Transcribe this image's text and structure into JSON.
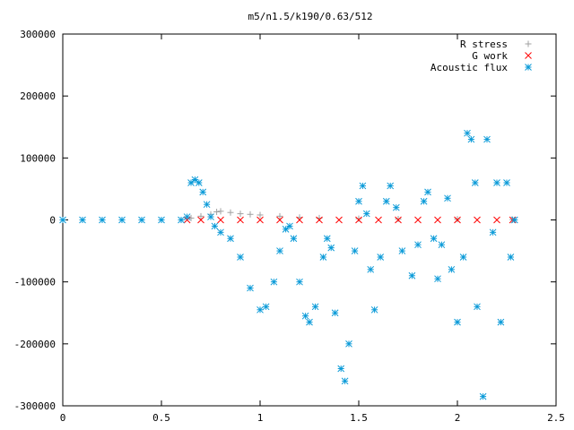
{
  "chart_data": {
    "type": "scatter",
    "title": "m5/n1.5/k190/0.63/512",
    "xlabel": "",
    "ylabel": "",
    "xlim": [
      0,
      2.5
    ],
    "ylim": [
      -300000,
      300000
    ],
    "x_ticks": [
      {
        "value": 0,
        "label": "0"
      },
      {
        "value": 0.5,
        "label": "0.5"
      },
      {
        "value": 1,
        "label": "1"
      },
      {
        "value": 1.5,
        "label": "1.5"
      },
      {
        "value": 2,
        "label": "2"
      },
      {
        "value": 2.5,
        "label": "2.5"
      }
    ],
    "y_ticks": [
      {
        "value": -300000,
        "label": "-300000"
      },
      {
        "value": -200000,
        "label": "-200000"
      },
      {
        "value": -100000,
        "label": "-100000"
      },
      {
        "value": 0,
        "label": "0"
      },
      {
        "value": 100000,
        "label": "100000"
      },
      {
        "value": 200000,
        "label": "200000"
      },
      {
        "value": 300000,
        "label": "300000"
      }
    ],
    "grid": false,
    "legend_position": "top-right",
    "series": [
      {
        "name": "R stress",
        "marker": "plus",
        "color": "#a0a0a0",
        "points": [
          [
            0.65,
            3000
          ],
          [
            0.7,
            6000
          ],
          [
            0.75,
            9000
          ],
          [
            0.78,
            13000
          ],
          [
            0.8,
            14000
          ],
          [
            0.85,
            12000
          ],
          [
            0.9,
            10000
          ],
          [
            0.95,
            9000
          ],
          [
            1.0,
            8000
          ],
          [
            1.1,
            6000
          ],
          [
            1.2,
            4000
          ],
          [
            1.3,
            3000
          ],
          [
            1.5,
            2000
          ],
          [
            1.7,
            1500
          ],
          [
            2.0,
            1000
          ],
          [
            2.28,
            500
          ]
        ]
      },
      {
        "name": "G work",
        "marker": "cross",
        "color": "#ff0000",
        "points": [
          [
            0.63,
            0
          ],
          [
            0.7,
            0
          ],
          [
            0.8,
            0
          ],
          [
            0.9,
            0
          ],
          [
            1.0,
            0
          ],
          [
            1.1,
            0
          ],
          [
            1.2,
            0
          ],
          [
            1.3,
            0
          ],
          [
            1.4,
            0
          ],
          [
            1.5,
            0
          ],
          [
            1.6,
            0
          ],
          [
            1.7,
            0
          ],
          [
            1.8,
            0
          ],
          [
            1.9,
            0
          ],
          [
            2.0,
            0
          ],
          [
            2.1,
            0
          ],
          [
            2.2,
            0
          ],
          [
            2.28,
            0
          ]
        ]
      },
      {
        "name": "Acoustic flux",
        "marker": "star",
        "color": "#0a9ad8",
        "points": [
          [
            0.0,
            0
          ],
          [
            0.1,
            0
          ],
          [
            0.2,
            0
          ],
          [
            0.3,
            0
          ],
          [
            0.4,
            0
          ],
          [
            0.5,
            0
          ],
          [
            0.6,
            0
          ],
          [
            0.63,
            5000
          ],
          [
            0.65,
            60000
          ],
          [
            0.67,
            65000
          ],
          [
            0.69,
            60000
          ],
          [
            0.71,
            45000
          ],
          [
            0.73,
            25000
          ],
          [
            0.75,
            5000
          ],
          [
            0.77,
            -10000
          ],
          [
            0.8,
            -20000
          ],
          [
            0.85,
            -30000
          ],
          [
            0.9,
            -60000
          ],
          [
            0.95,
            -110000
          ],
          [
            1.0,
            -145000
          ],
          [
            1.03,
            -140000
          ],
          [
            1.07,
            -100000
          ],
          [
            1.1,
            -50000
          ],
          [
            1.13,
            -15000
          ],
          [
            1.15,
            -10000
          ],
          [
            1.17,
            -30000
          ],
          [
            1.2,
            -100000
          ],
          [
            1.23,
            -155000
          ],
          [
            1.25,
            -165000
          ],
          [
            1.28,
            -140000
          ],
          [
            1.32,
            -60000
          ],
          [
            1.34,
            -30000
          ],
          [
            1.36,
            -45000
          ],
          [
            1.38,
            -150000
          ],
          [
            1.41,
            -240000
          ],
          [
            1.43,
            -260000
          ],
          [
            1.45,
            -200000
          ],
          [
            1.48,
            -50000
          ],
          [
            1.5,
            30000
          ],
          [
            1.52,
            55000
          ],
          [
            1.54,
            10000
          ],
          [
            1.56,
            -80000
          ],
          [
            1.58,
            -145000
          ],
          [
            1.61,
            -60000
          ],
          [
            1.64,
            30000
          ],
          [
            1.66,
            55000
          ],
          [
            1.69,
            20000
          ],
          [
            1.72,
            -50000
          ],
          [
            1.77,
            -90000
          ],
          [
            1.8,
            -40000
          ],
          [
            1.83,
            30000
          ],
          [
            1.85,
            45000
          ],
          [
            1.88,
            -30000
          ],
          [
            1.9,
            -95000
          ],
          [
            1.92,
            -40000
          ],
          [
            1.95,
            35000
          ],
          [
            1.97,
            -80000
          ],
          [
            2.0,
            -165000
          ],
          [
            2.03,
            -60000
          ],
          [
            2.05,
            140000
          ],
          [
            2.07,
            130000
          ],
          [
            2.09,
            60000
          ],
          [
            2.1,
            -140000
          ],
          [
            2.13,
            -285000
          ],
          [
            2.15,
            130000
          ],
          [
            2.18,
            -20000
          ],
          [
            2.2,
            60000
          ],
          [
            2.22,
            -165000
          ],
          [
            2.25,
            60000
          ],
          [
            2.27,
            -60000
          ],
          [
            2.29,
            0
          ]
        ]
      }
    ]
  }
}
